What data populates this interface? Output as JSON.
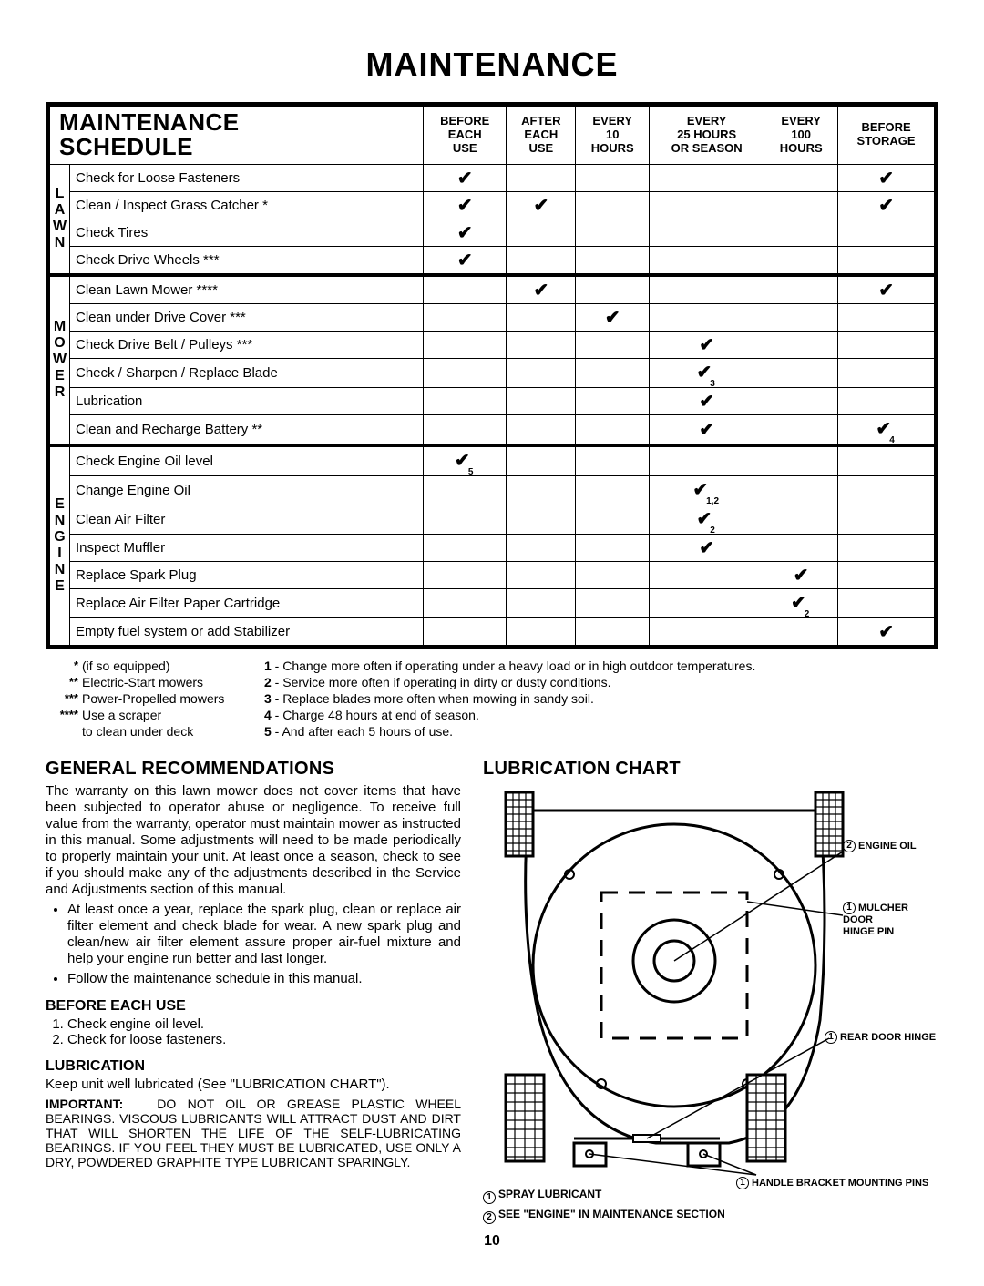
{
  "page_title": "MAINTENANCE",
  "schedule_title_l1": "MAINTENANCE",
  "schedule_title_l2": "SCHEDULE",
  "columns": [
    "BEFORE\nEACH\nUSE",
    "AFTER\nEACH\nUSE",
    "EVERY\n10\nHOURS",
    "EVERY\n25 HOURS\nOR SEASON",
    "EVERY\n100\nHOURS",
    "BEFORE\nSTORAGE"
  ],
  "side_labels": {
    "lawn": [
      "L",
      "A",
      "W",
      "N"
    ],
    "mower": [
      "M",
      "O",
      "W",
      "E",
      "R"
    ],
    "engine": [
      "E",
      "N",
      "G",
      "I",
      "N",
      "E"
    ]
  },
  "rows": [
    {
      "task": "Check for Loose Fasteners",
      "c": [
        true,
        false,
        false,
        false,
        false,
        true
      ]
    },
    {
      "task": "Clean / Inspect Grass Catcher *",
      "c": [
        true,
        true,
        false,
        false,
        false,
        true
      ]
    },
    {
      "task": "Check Tires",
      "c": [
        true,
        false,
        false,
        false,
        false,
        false
      ]
    },
    {
      "task": "Check Drive Wheels ***",
      "c": [
        true,
        false,
        false,
        false,
        false,
        false
      ]
    },
    {
      "task": "Clean Lawn Mower ****",
      "c": [
        false,
        true,
        false,
        false,
        false,
        true
      ]
    },
    {
      "task": "Clean under Drive Cover ***",
      "c": [
        false,
        false,
        true,
        false,
        false,
        false
      ]
    },
    {
      "task": "Check Drive Belt / Pulleys ***",
      "c": [
        false,
        false,
        false,
        true,
        false,
        false
      ]
    },
    {
      "task": "Check / Sharpen / Replace Blade",
      "c": [
        false,
        false,
        false,
        true,
        false,
        false
      ],
      "sub": {
        "3": "3"
      }
    },
    {
      "task": "Lubrication",
      "c": [
        false,
        false,
        false,
        true,
        false,
        false
      ]
    },
    {
      "task": "Clean and Recharge Battery **",
      "c": [
        false,
        false,
        false,
        true,
        false,
        true
      ],
      "sub": {
        "5": "4"
      }
    },
    {
      "task": "Check Engine Oil level",
      "c": [
        true,
        false,
        false,
        false,
        false,
        false
      ],
      "sub": {
        "0": "5"
      }
    },
    {
      "task": "Change Engine Oil",
      "c": [
        false,
        false,
        false,
        true,
        false,
        false
      ],
      "sub": {
        "3": "1,2"
      }
    },
    {
      "task": "Clean Air Filter",
      "c": [
        false,
        false,
        false,
        true,
        false,
        false
      ],
      "sub": {
        "3": "2"
      }
    },
    {
      "task": "Inspect Muffler",
      "c": [
        false,
        false,
        false,
        true,
        false,
        false
      ]
    },
    {
      "task": "Replace Spark Plug",
      "c": [
        false,
        false,
        false,
        false,
        true,
        false
      ]
    },
    {
      "task": "Replace Air Filter Paper Cartridge",
      "c": [
        false,
        false,
        false,
        false,
        true,
        false
      ],
      "sub": {
        "4": "2"
      }
    },
    {
      "task": "Empty fuel system or add Stabilizer",
      "c": [
        false,
        false,
        false,
        false,
        false,
        true
      ]
    }
  ],
  "section_splits": [
    4,
    10
  ],
  "star_notes": [
    {
      "s": "*",
      "t": "(if so equipped)"
    },
    {
      "s": "**",
      "t": "Electric-Start mowers"
    },
    {
      "s": "***",
      "t": "Power-Propelled mowers"
    },
    {
      "s": "****",
      "t": "Use a scraper"
    },
    {
      "s": "",
      "t": "to clean under deck"
    }
  ],
  "num_notes": [
    "1 - Change more often if operating under a heavy load or in high outdoor temperatures.",
    "2 - Service more often if operating in dirty or dusty conditions.",
    "3 - Replace blades more often when mowing in sandy soil.",
    "4 - Charge 48 hours at end of season.",
    "5 - And after each 5 hours of use."
  ],
  "gen_rec_h": "GENERAL RECOMMENDATIONS",
  "gen_rec_p": "The warranty on this lawn mower does not cover items that have been subjected to operator abuse or negligence.  To receive full value from the warranty, operator must maintain mower as instructed in this manual.  Some adjustments will need to be made periodically to properly maintain your unit.  At least once a season, check to see if you should make any of the adjustments described in the Service and Adjustments section of this manual.",
  "gen_rec_b1": "At least once a year, replace the spark plug, clean or replace air filter element and check blade for wear.  A new spark plug and clean/new air filter element assure proper air-fuel mixture and help your engine run better and last longer.",
  "gen_rec_b2": "Follow the maintenance schedule in this manual.",
  "beu_h": "BEFORE EACH USE",
  "beu_1": "Check engine oil level.",
  "beu_2": "Check for loose fasteners.",
  "lub_h": "LUBRICATION",
  "lub_p": "Keep unit well lubricated (See \"LUBRICATION CHART\").",
  "lub_imp": "IMPORTANT:   DO NOT OIL OR GREASE PLASTIC WHEEL BEARINGS.  VISCOUS LUBRICANTS WILL ATTRACT DUST AND DIRT THAT WILL SHORTEN THE LIFE OF THE SELF-LUBRICATING BEARINGS.  IF YOU FEEL THEY MUST BE LUBRICATED, USE ONLY A DRY, POWDERED GRAPHITE TYPE LUBRICANT SPARINGLY.",
  "lube_chart_h": "LUBRICATION CHART",
  "lube_labels": {
    "engine_oil": "ENGINE OIL",
    "mulcher": "MULCHER\nDOOR\nHINGE PIN",
    "rear_door": "REAR DOOR HINGE",
    "handle": "HANDLE BRACKET MOUNTING PINS"
  },
  "legend_1": "SPRAY LUBRICANT",
  "legend_2": "SEE \"ENGINE\" IN MAINTENANCE SECTION",
  "page_num": "10"
}
